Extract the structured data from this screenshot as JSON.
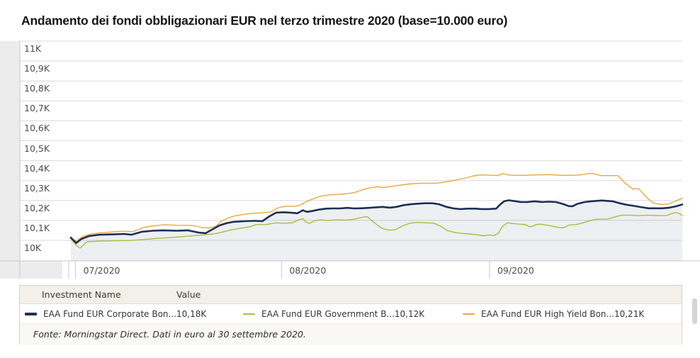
{
  "title": "Andamento dei fondi obbligazionari EUR nel terzo trimestre 2020 (base=10.000 euro)",
  "footnote": "Fonte: Morningstar Direct. Dati in euro al 30 settembre 2020.",
  "colors": {
    "corporate": "#1b3156",
    "government": "#abbe3b",
    "high_yield": "#eda63f",
    "gridline": "#d9d9d9",
    "axis": "#c9c9c9",
    "gutter": "#ececec",
    "area_fill": "rgba(27,50,90,0.08)"
  },
  "legend": {
    "columns": {
      "name": "Investment Name",
      "value": "Value"
    },
    "items": [
      {
        "label": "EAA Fund EUR Corporate Bon...",
        "value": "10,18K",
        "color": "#1b3156"
      },
      {
        "label": "EAA Fund EUR Government B...",
        "value": "10,12K",
        "color": "#abbe3b"
      },
      {
        "label": "EAA Fund EUR High Yield Bon...",
        "value": "10,21K",
        "color": "#eda63f"
      }
    ]
  },
  "chart_data": {
    "type": "line",
    "title": "Andamento dei fondi obbligazionari EUR nel terzo trimestre 2020 (base=10.000 euro)",
    "unit": "K euro (base = 10.000 euro)",
    "ylim": [
      9.897,
      11.0
    ],
    "x_range_days": [
      0,
      92
    ],
    "grid": true,
    "legend_position": "bottom",
    "y_ticks": [
      {
        "label": "11K",
        "value": 11.0
      },
      {
        "label": "10,9K",
        "value": 10.9
      },
      {
        "label": "10,8K",
        "value": 10.8
      },
      {
        "label": "10,7K",
        "value": 10.7
      },
      {
        "label": "10,6K",
        "value": 10.6
      },
      {
        "label": "10,5K",
        "value": 10.5
      },
      {
        "label": "10,4K",
        "value": 10.4
      },
      {
        "label": "10,3K",
        "value": 10.3
      },
      {
        "label": "10,2K",
        "value": 10.2
      },
      {
        "label": "10,1K",
        "value": 10.1
      },
      {
        "label": "10K",
        "value": 10.0
      }
    ],
    "x_ticks": [
      {
        "label": "07/2020",
        "day": 0.7
      },
      {
        "label": "08/2020",
        "day": 31.7
      },
      {
        "label": "09/2020",
        "day": 63.0
      }
    ],
    "series": [
      {
        "name": "EAA Fund EUR Corporate Bon...",
        "final_value_label": "10,18K",
        "color": "#1b3156",
        "points": [
          [
            0,
            10.014
          ],
          [
            0.8,
            9.986
          ],
          [
            1.6,
            10.007
          ],
          [
            2.7,
            10.021
          ],
          [
            4.3,
            10.028
          ],
          [
            6.4,
            10.03
          ],
          [
            8.0,
            10.032
          ],
          [
            9.1,
            10.028
          ],
          [
            10.7,
            10.043
          ],
          [
            12.3,
            10.048
          ],
          [
            13.9,
            10.05
          ],
          [
            16.0,
            10.048
          ],
          [
            17.6,
            10.05
          ],
          [
            19.2,
            10.039
          ],
          [
            20.3,
            10.036
          ],
          [
            20.8,
            10.046
          ],
          [
            22.4,
            10.075
          ],
          [
            23.5,
            10.087
          ],
          [
            24.5,
            10.093
          ],
          [
            26.1,
            10.096
          ],
          [
            27.7,
            10.098
          ],
          [
            28.8,
            10.096
          ],
          [
            29.9,
            10.121
          ],
          [
            30.9,
            10.139
          ],
          [
            32.0,
            10.141
          ],
          [
            33.0,
            10.139
          ],
          [
            34.1,
            10.136
          ],
          [
            34.9,
            10.151
          ],
          [
            35.5,
            10.143
          ],
          [
            36.3,
            10.147
          ],
          [
            37.3,
            10.154
          ],
          [
            38.4,
            10.159
          ],
          [
            39.4,
            10.16
          ],
          [
            40.5,
            10.16
          ],
          [
            41.6,
            10.163
          ],
          [
            42.6,
            10.16
          ],
          [
            43.7,
            10.161
          ],
          [
            44.8,
            10.163
          ],
          [
            45.8,
            10.165
          ],
          [
            46.9,
            10.168
          ],
          [
            48.0,
            10.164
          ],
          [
            49.0,
            10.168
          ],
          [
            50.1,
            10.177
          ],
          [
            51.2,
            10.181
          ],
          [
            52.2,
            10.184
          ],
          [
            53.3,
            10.186
          ],
          [
            54.4,
            10.186
          ],
          [
            55.4,
            10.181
          ],
          [
            56.5,
            10.168
          ],
          [
            57.6,
            10.16
          ],
          [
            58.6,
            10.157
          ],
          [
            59.7,
            10.159
          ],
          [
            60.8,
            10.159
          ],
          [
            61.8,
            10.157
          ],
          [
            62.9,
            10.157
          ],
          [
            64.0,
            10.159
          ],
          [
            64.6,
            10.18
          ],
          [
            65.2,
            10.196
          ],
          [
            65.9,
            10.201
          ],
          [
            66.6,
            10.198
          ],
          [
            67.7,
            10.192
          ],
          [
            68.7,
            10.192
          ],
          [
            69.8,
            10.196
          ],
          [
            70.9,
            10.192
          ],
          [
            71.9,
            10.194
          ],
          [
            73.0,
            10.192
          ],
          [
            74.1,
            10.182
          ],
          [
            74.9,
            10.172
          ],
          [
            75.5,
            10.171
          ],
          [
            76.2,
            10.183
          ],
          [
            77.3,
            10.192
          ],
          [
            78.3,
            10.196
          ],
          [
            79.9,
            10.2
          ],
          [
            81.5,
            10.196
          ],
          [
            82.6,
            10.186
          ],
          [
            83.7,
            10.178
          ],
          [
            84.7,
            10.173
          ],
          [
            85.8,
            10.167
          ],
          [
            86.9,
            10.161
          ],
          [
            87.9,
            10.161
          ],
          [
            89.0,
            10.161
          ],
          [
            90.1,
            10.164
          ],
          [
            91.1,
            10.171
          ],
          [
            92,
            10.18
          ]
        ]
      },
      {
        "name": "EAA Fund EUR Government B...",
        "final_value_label": "10,12K",
        "color": "#abbe3b",
        "points": [
          [
            0,
            10.007
          ],
          [
            0.9,
            9.972
          ],
          [
            1.4,
            9.961
          ],
          [
            2.4,
            9.992
          ],
          [
            4.3,
            9.996
          ],
          [
            6.6,
            9.998
          ],
          [
            8.7,
            9.999
          ],
          [
            10.9,
            10.004
          ],
          [
            13.0,
            10.01
          ],
          [
            15.1,
            10.014
          ],
          [
            17.3,
            10.02
          ],
          [
            19.4,
            10.026
          ],
          [
            21.5,
            10.032
          ],
          [
            22.6,
            10.04
          ],
          [
            23.7,
            10.049
          ],
          [
            24.7,
            10.056
          ],
          [
            25.8,
            10.062
          ],
          [
            26.9,
            10.068
          ],
          [
            27.9,
            10.079
          ],
          [
            29.3,
            10.079
          ],
          [
            30.9,
            10.088
          ],
          [
            32.0,
            10.085
          ],
          [
            33.3,
            10.088
          ],
          [
            34.3,
            10.103
          ],
          [
            34.9,
            10.109
          ],
          [
            35.4,
            10.091
          ],
          [
            35.9,
            10.085
          ],
          [
            36.6,
            10.097
          ],
          [
            37.5,
            10.103
          ],
          [
            38.6,
            10.1
          ],
          [
            40.0,
            10.103
          ],
          [
            41.3,
            10.101
          ],
          [
            42.6,
            10.106
          ],
          [
            43.8,
            10.115
          ],
          [
            44.6,
            10.119
          ],
          [
            45.6,
            10.09
          ],
          [
            46.7,
            10.062
          ],
          [
            47.8,
            10.051
          ],
          [
            48.8,
            10.053
          ],
          [
            49.9,
            10.072
          ],
          [
            51.0,
            10.086
          ],
          [
            52.2,
            10.09
          ],
          [
            53.5,
            10.088
          ],
          [
            54.6,
            10.086
          ],
          [
            55.6,
            10.071
          ],
          [
            56.7,
            10.048
          ],
          [
            57.8,
            10.039
          ],
          [
            58.8,
            10.035
          ],
          [
            59.9,
            10.032
          ],
          [
            61.0,
            10.029
          ],
          [
            62.0,
            10.023
          ],
          [
            63.1,
            10.027
          ],
          [
            63.6,
            10.023
          ],
          [
            64.3,
            10.035
          ],
          [
            65.0,
            10.072
          ],
          [
            65.7,
            10.088
          ],
          [
            66.3,
            10.085
          ],
          [
            67.4,
            10.081
          ],
          [
            68.4,
            10.079
          ],
          [
            69.0,
            10.068
          ],
          [
            69.5,
            10.07
          ],
          [
            70.0,
            10.079
          ],
          [
            70.6,
            10.081
          ],
          [
            71.6,
            10.076
          ],
          [
            72.7,
            10.069
          ],
          [
            73.8,
            10.062
          ],
          [
            74.3,
            10.065
          ],
          [
            74.9,
            10.076
          ],
          [
            76.0,
            10.079
          ],
          [
            77.1,
            10.088
          ],
          [
            78.1,
            10.099
          ],
          [
            79.2,
            10.106
          ],
          [
            80.8,
            10.107
          ],
          [
            81.9,
            10.118
          ],
          [
            82.9,
            10.126
          ],
          [
            84.5,
            10.126
          ],
          [
            85.3,
            10.124
          ],
          [
            86.7,
            10.126
          ],
          [
            88.3,
            10.124
          ],
          [
            89.7,
            10.125
          ],
          [
            90.6,
            10.136
          ],
          [
            91.1,
            10.14
          ],
          [
            91.7,
            10.131
          ],
          [
            92,
            10.124
          ]
        ]
      },
      {
        "name": "EAA Fund EUR High Yield Bon...",
        "final_value_label": "10,21K",
        "color": "#eda63f",
        "points": [
          [
            0,
            10.011
          ],
          [
            0.8,
            9.996
          ],
          [
            1.8,
            10.019
          ],
          [
            2.9,
            10.031
          ],
          [
            4.5,
            10.038
          ],
          [
            6.6,
            10.043
          ],
          [
            8.2,
            10.046
          ],
          [
            9.3,
            10.043
          ],
          [
            10.9,
            10.064
          ],
          [
            12.5,
            10.073
          ],
          [
            14.1,
            10.078
          ],
          [
            16.2,
            10.075
          ],
          [
            18.3,
            10.075
          ],
          [
            19.7,
            10.064
          ],
          [
            20.8,
            10.062
          ],
          [
            21.9,
            10.071
          ],
          [
            22.6,
            10.095
          ],
          [
            23.7,
            10.113
          ],
          [
            24.7,
            10.123
          ],
          [
            26.9,
            10.134
          ],
          [
            29.0,
            10.139
          ],
          [
            30.1,
            10.143
          ],
          [
            31.1,
            10.162
          ],
          [
            32.2,
            10.171
          ],
          [
            33.3,
            10.17
          ],
          [
            34.3,
            10.174
          ],
          [
            35.4,
            10.194
          ],
          [
            36.5,
            10.209
          ],
          [
            37.5,
            10.221
          ],
          [
            38.6,
            10.227
          ],
          [
            39.7,
            10.23
          ],
          [
            41.3,
            10.233
          ],
          [
            42.6,
            10.239
          ],
          [
            43.9,
            10.254
          ],
          [
            45.0,
            10.263
          ],
          [
            46.1,
            10.269
          ],
          [
            47.1,
            10.265
          ],
          [
            48.7,
            10.273
          ],
          [
            50.9,
            10.283
          ],
          [
            53.0,
            10.287
          ],
          [
            55.1,
            10.287
          ],
          [
            57.2,
            10.298
          ],
          [
            59.4,
            10.313
          ],
          [
            60.4,
            10.322
          ],
          [
            61.5,
            10.328
          ],
          [
            63.1,
            10.327
          ],
          [
            64.2,
            10.325
          ],
          [
            65.0,
            10.334
          ],
          [
            66.1,
            10.327
          ],
          [
            67.7,
            10.326
          ],
          [
            69.8,
            10.328
          ],
          [
            71.9,
            10.33
          ],
          [
            74.1,
            10.326
          ],
          [
            76.2,
            10.327
          ],
          [
            77.3,
            10.331
          ],
          [
            78.0,
            10.336
          ],
          [
            78.7,
            10.334
          ],
          [
            79.7,
            10.325
          ],
          [
            81.2,
            10.325
          ],
          [
            82.3,
            10.325
          ],
          [
            83.4,
            10.287
          ],
          [
            84.6,
            10.257
          ],
          [
            85.0,
            10.26
          ],
          [
            85.5,
            10.257
          ],
          [
            86.6,
            10.216
          ],
          [
            87.6,
            10.188
          ],
          [
            88.7,
            10.18
          ],
          [
            89.8,
            10.182
          ],
          [
            90.8,
            10.194
          ],
          [
            91.5,
            10.204
          ],
          [
            92,
            10.211
          ]
        ]
      }
    ]
  }
}
